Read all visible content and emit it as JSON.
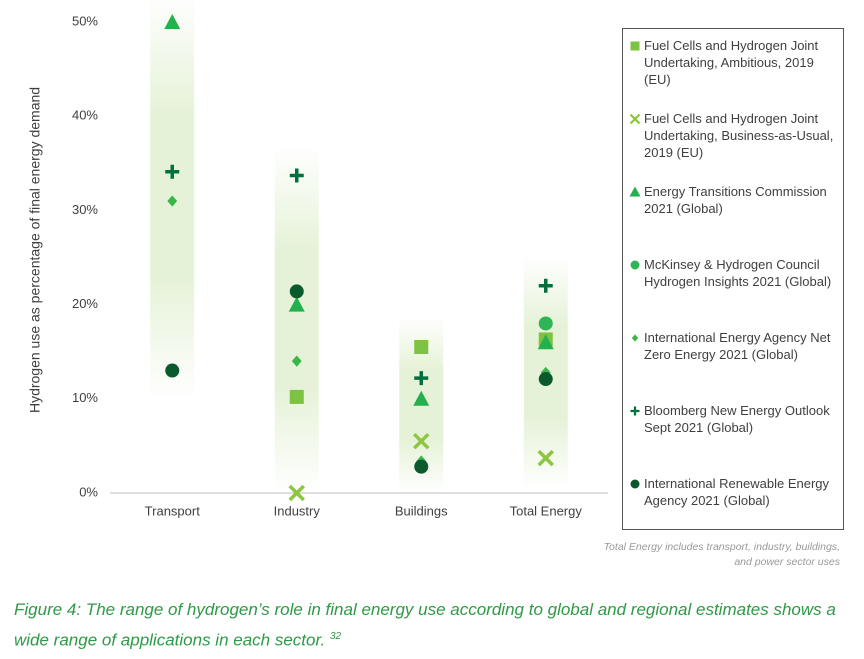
{
  "chart_data": {
    "type": "scatter",
    "y_label": "Hydrogen use as percentage of final energy demand",
    "categories": [
      "Transport",
      "Industry",
      "Buildings",
      "Total Energy"
    ],
    "ylim": [
      0,
      50
    ],
    "yticks": [
      {
        "value": 0,
        "label": "0%"
      },
      {
        "value": 10,
        "label": "10%"
      },
      {
        "value": 20,
        "label": "20%"
      },
      {
        "value": 30,
        "label": "30%"
      },
      {
        "value": 40,
        "label": "40%"
      },
      {
        "value": 50,
        "label": "50%"
      }
    ],
    "series": [
      {
        "name": "Fuel Cells and Hydrogen Joint Undertaking, Ambitious, 2019 (EU)",
        "marker": "square",
        "color": "#7dc242",
        "values": [
          null,
          10.2,
          15.5,
          16.3
        ]
      },
      {
        "name": "Fuel Cells and Hydrogen Joint Undertaking, Business-as-Usual, 2019  (EU)",
        "marker": "x",
        "color": "#8dc63f",
        "values": [
          null,
          0,
          5.5,
          3.7
        ]
      },
      {
        "name": "Energy Transitions Commission 2021 (Global)",
        "marker": "triangle",
        "color": "#22b14c",
        "values": [
          50,
          20,
          10,
          16
        ]
      },
      {
        "name": "McKinsey & Hydrogen Council Hydrogen Insights 2021 (Global)",
        "marker": "circle",
        "color": "#2fb457",
        "values": [
          null,
          null,
          null,
          18
        ]
      },
      {
        "name": "International Energy Agency Net Zero Energy 2021 (Global)",
        "marker": "diamond",
        "color": "#39b54a",
        "values": [
          31,
          14,
          3.4,
          12.8
        ]
      },
      {
        "name": "Bloomberg New Energy Outlook Sept 2021 (Global)",
        "marker": "plus",
        "color": "#00703c",
        "values": [
          34.1,
          33.7,
          12.2,
          22
        ]
      },
      {
        "name": "International Renewable Energy Agency 2021 (Global)",
        "marker": "circle",
        "color": "#0b5a2e",
        "values": [
          13,
          21.4,
          2.8,
          12.1
        ]
      }
    ],
    "note": "Total Energy includes transport, industry, buildings, and power sector uses",
    "caption": "Figure 4: The range of hydrogen’s role in final energy use according to global and regional estimates shows a wide range of applications in each sector.",
    "caption_ref": "32"
  }
}
